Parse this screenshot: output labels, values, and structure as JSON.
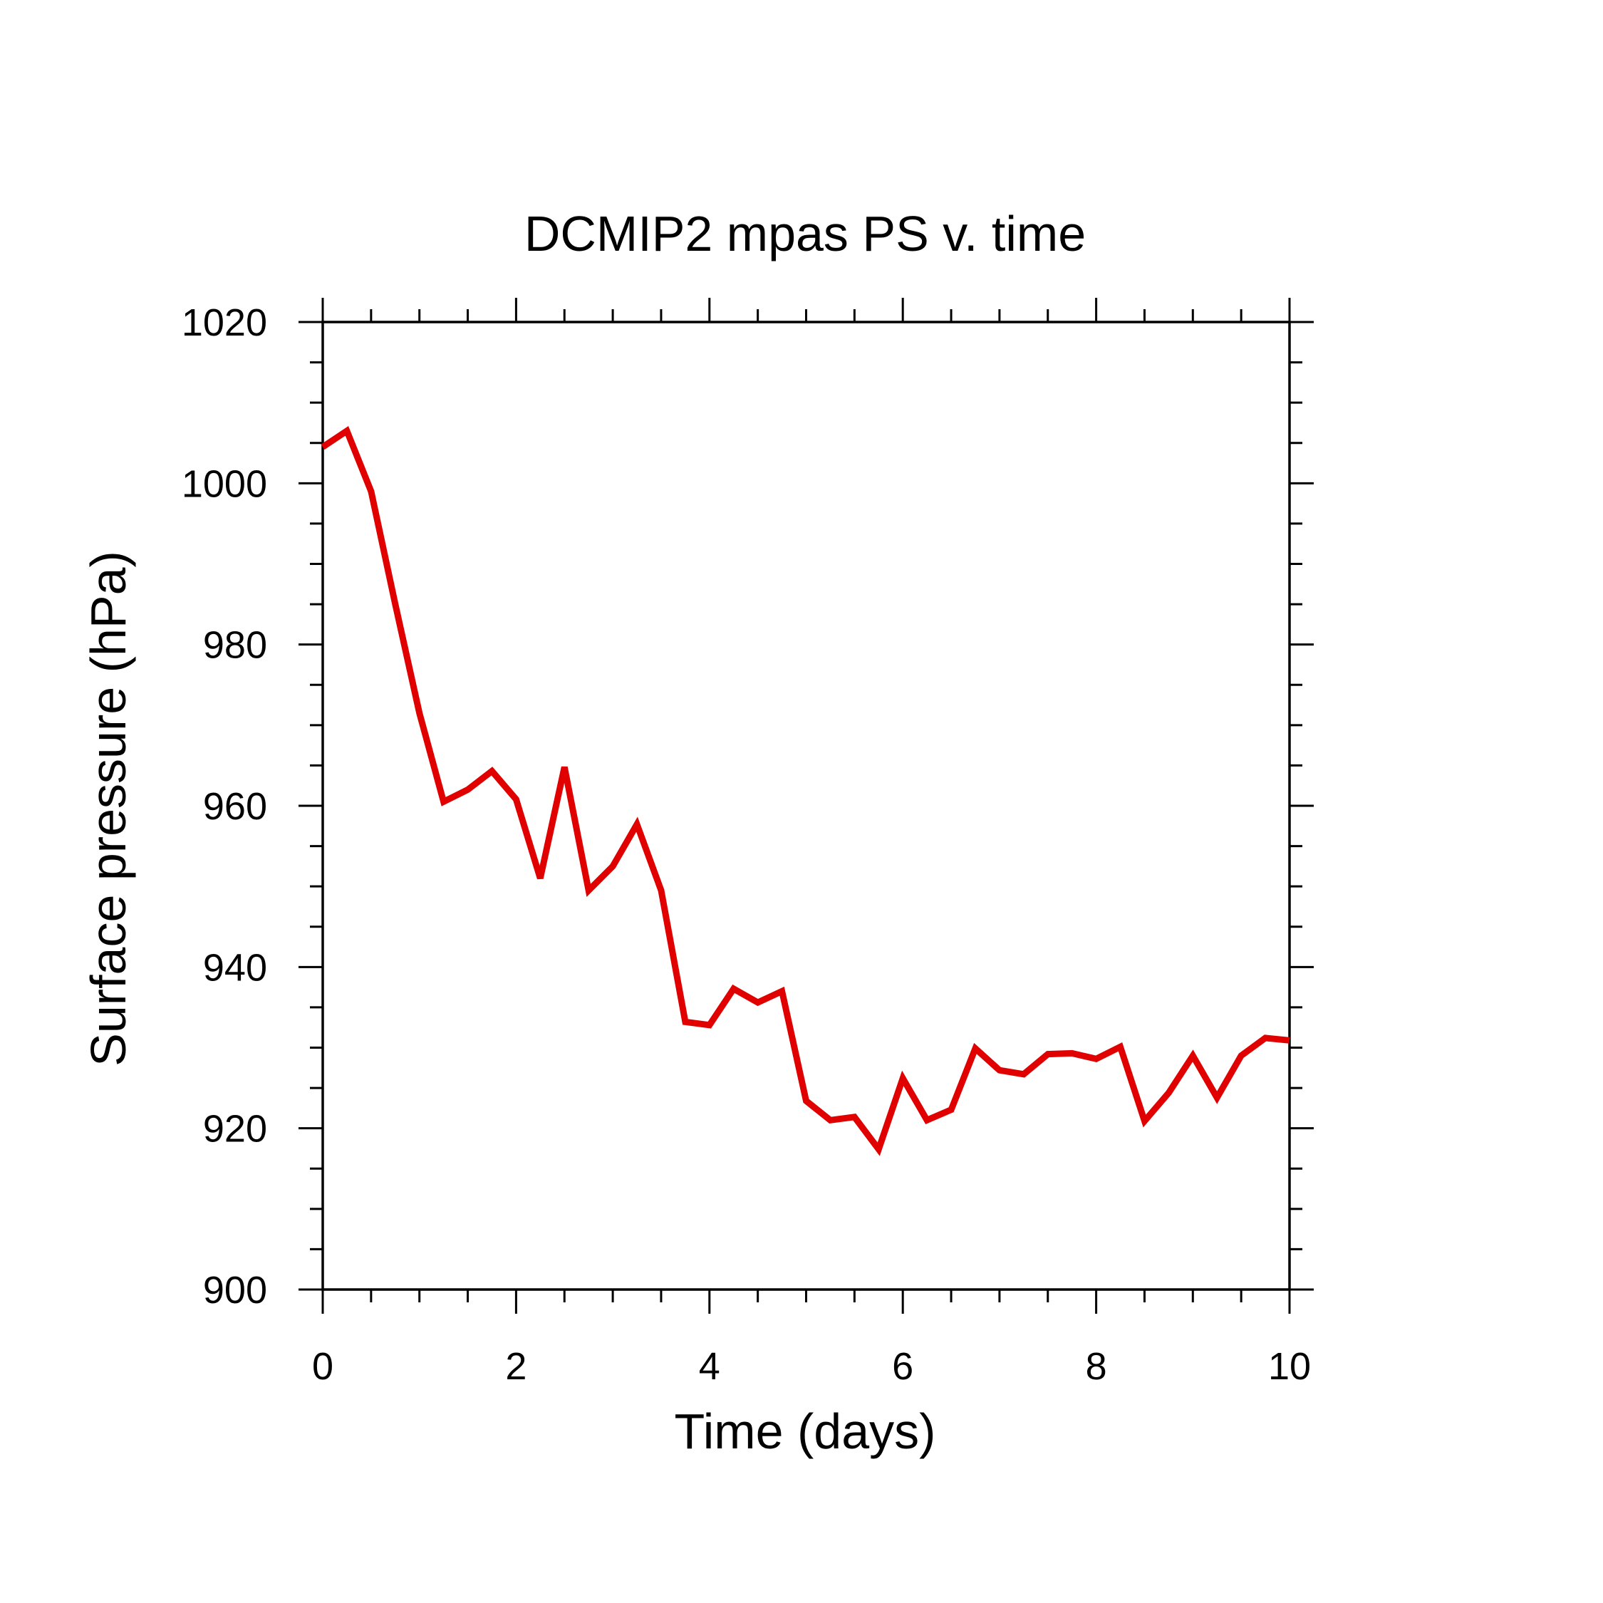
{
  "chart_data": {
    "type": "line",
    "title": "DCMIP2 mpas PS v. time",
    "xlabel": "Time (days)",
    "ylabel": "Surface pressure (hPa)",
    "xlim": [
      0,
      10
    ],
    "ylim": [
      900,
      1020
    ],
    "x_ticks": [
      0,
      2,
      4,
      6,
      8,
      10
    ],
    "x_tick_labels": [
      "0",
      "2",
      "4",
      "6",
      "8",
      "10"
    ],
    "x_minor_step": 0.5,
    "y_ticks": [
      900,
      920,
      940,
      960,
      980,
      1000,
      1020
    ],
    "y_tick_labels": [
      "900",
      "920",
      "940",
      "960",
      "980",
      "1000",
      "1020"
    ],
    "y_minor_step": 5,
    "grid": false,
    "series": [
      {
        "color": "#e00000",
        "x": [
          0,
          0.25,
          0.5,
          0.75,
          1.0,
          1.25,
          1.5,
          1.75,
          2.0,
          2.25,
          2.5,
          2.75,
          3.0,
          3.25,
          3.5,
          3.75,
          4.0,
          4.25,
          4.5,
          4.75,
          5.0,
          5.25,
          5.5,
          5.75,
          6.0,
          6.25,
          6.5,
          6.75,
          7.0,
          7.25,
          7.5,
          7.75,
          8.0,
          8.25,
          8.5,
          8.75,
          9.0,
          9.25,
          9.5,
          9.75,
          10.0
        ],
        "values": [
          1004.5,
          1006.5,
          999,
          985,
          971.5,
          960.5,
          962,
          964.3,
          960.8,
          951,
          964.8,
          949.5,
          952.5,
          957.7,
          949.5,
          933.2,
          932.8,
          937.3,
          935.6,
          937,
          923.4,
          921,
          921.4,
          917.4,
          926.2,
          921,
          922.3,
          929.9,
          927.2,
          926.7,
          929.2,
          929.3,
          928.6,
          930.1,
          920.9,
          924.4,
          929,
          923.8,
          929,
          931.2,
          930.9
        ]
      }
    ]
  },
  "colors": {
    "series_line": "#e00000",
    "axes": "#000000"
  }
}
